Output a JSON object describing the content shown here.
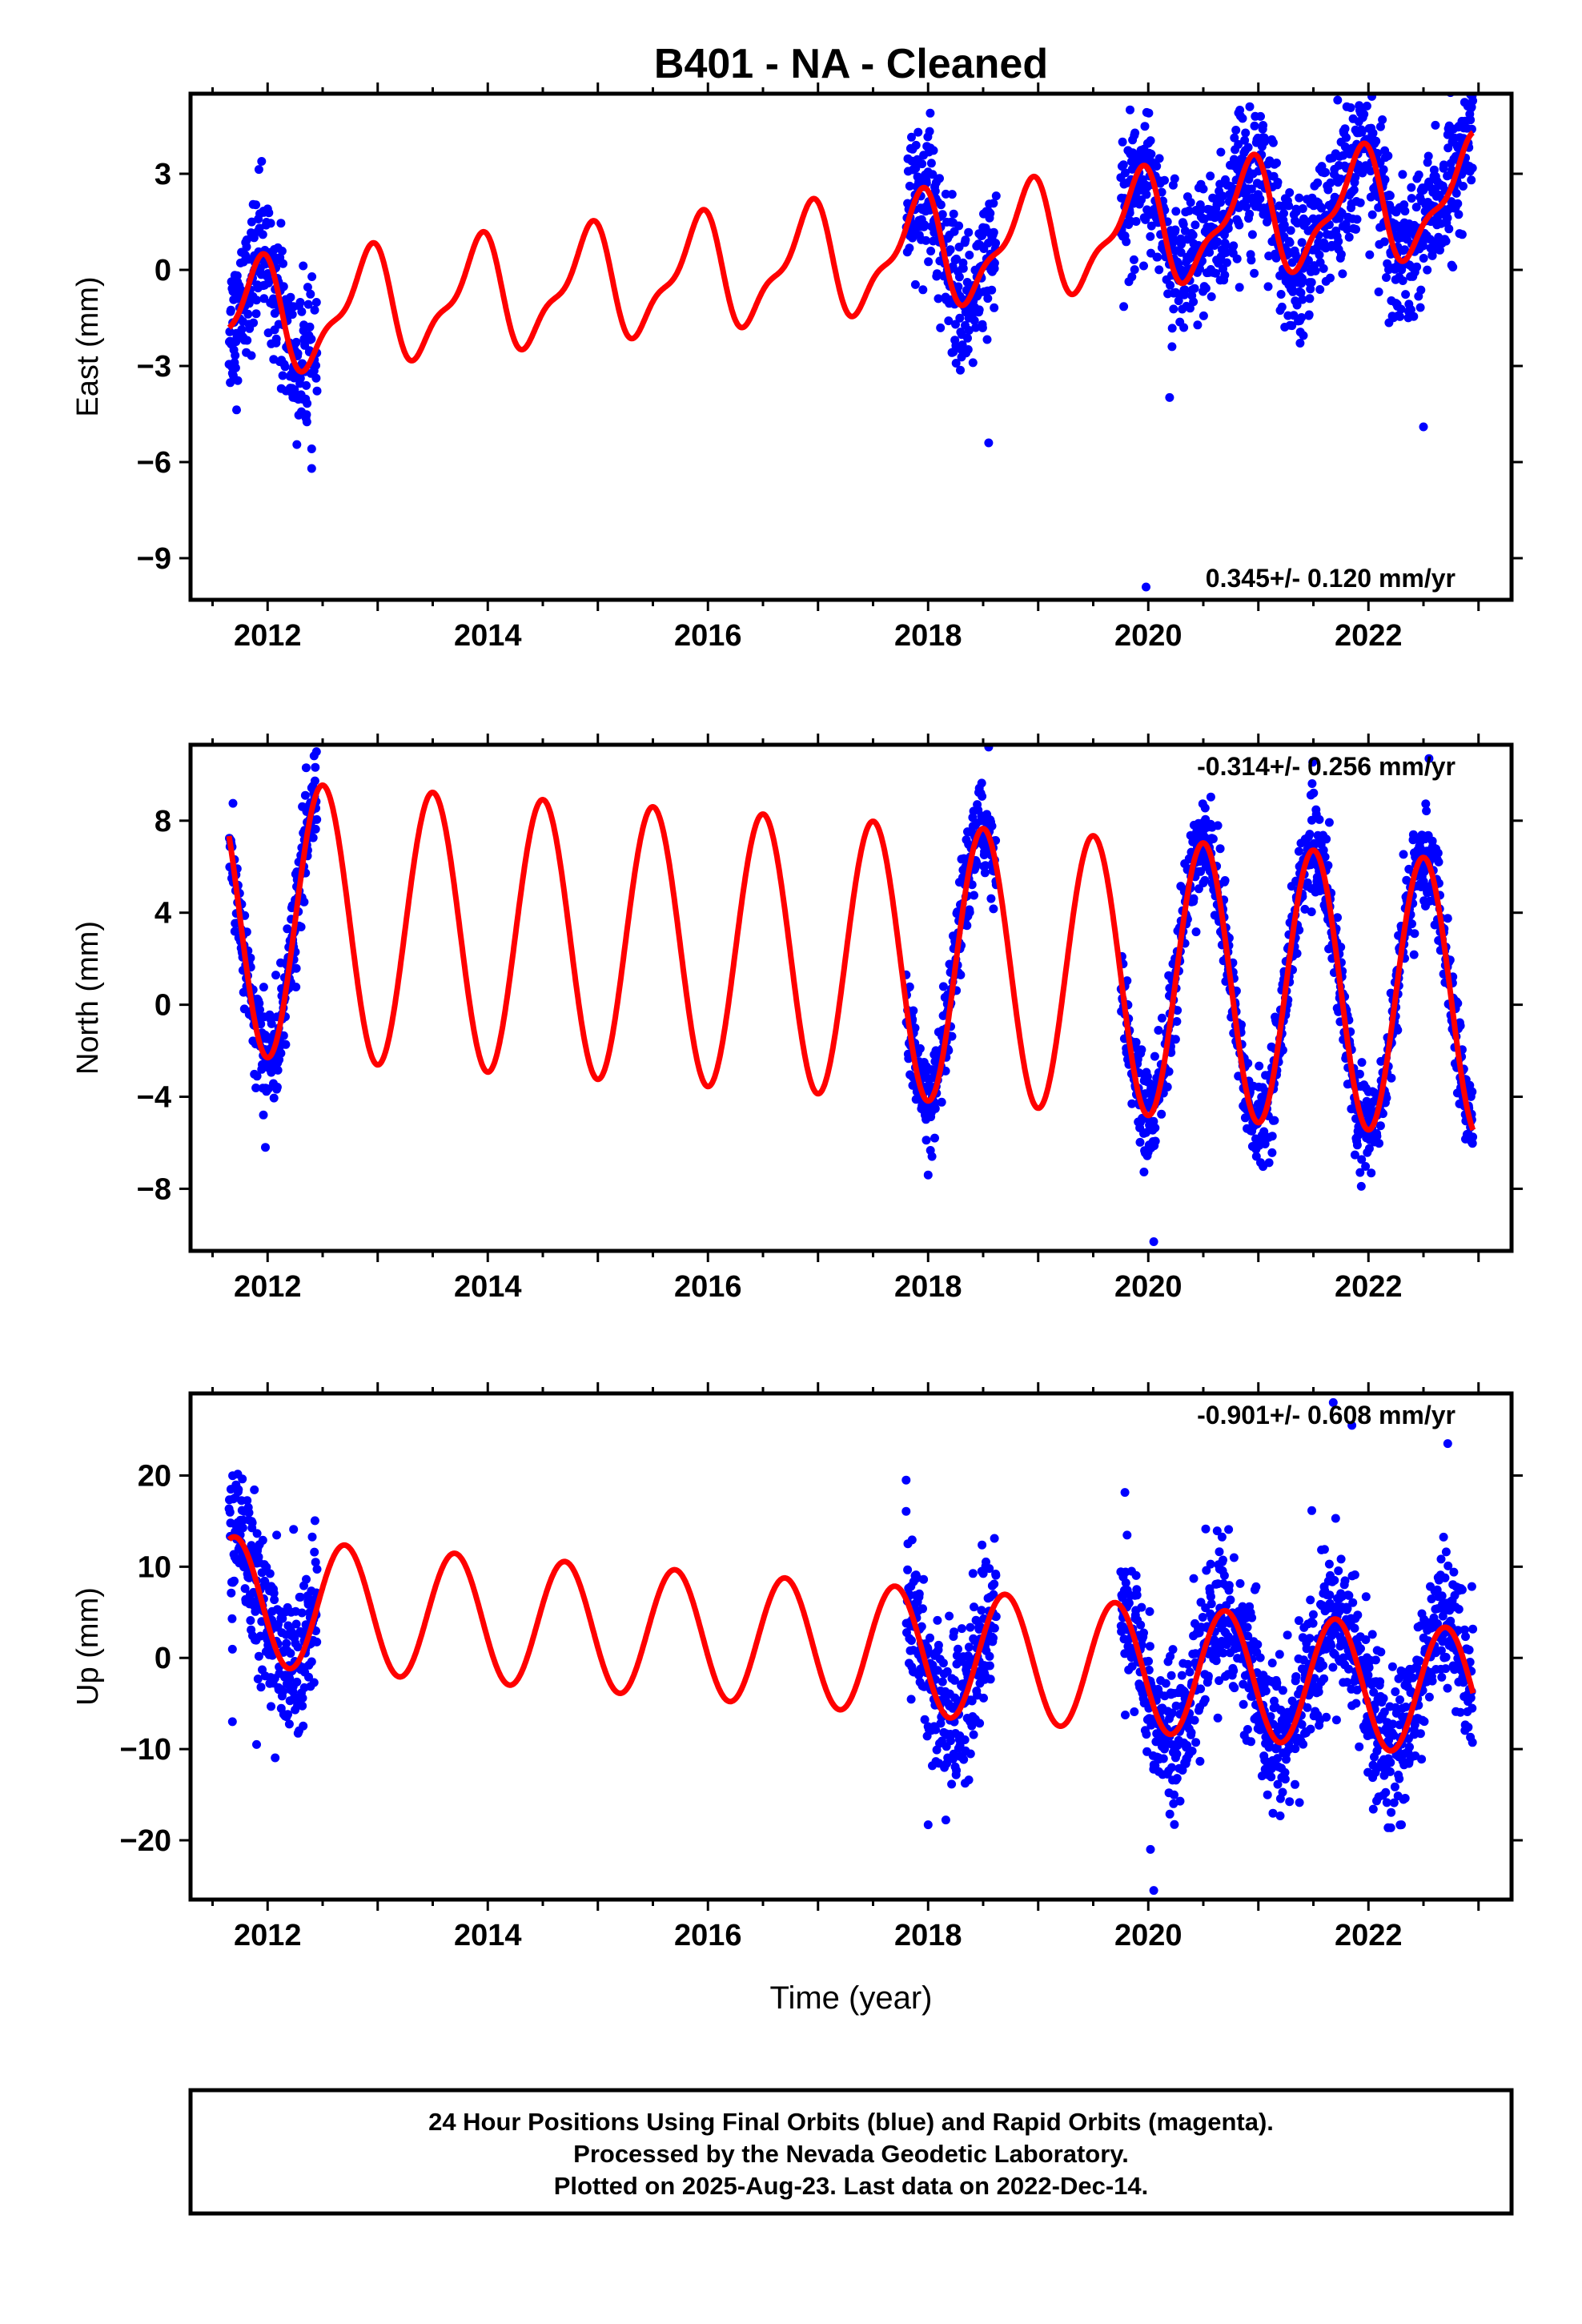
{
  "title": "B401  - NA - Cleaned",
  "footer": {
    "line1": "24 Hour Positions Using Final Orbits (blue) and Rapid Orbits (magenta).",
    "line2": "Processed by the Nevada Geodetic Laboratory.",
    "line3": "Plotted on 2025-Aug-23. Last data on 2022-Dec-14."
  },
  "colors": {
    "data": "#0000ff",
    "fit": "#ff0000"
  },
  "chart_data": [
    {
      "type": "scatter",
      "component": "east",
      "ylabel": "East (mm)",
      "xlim": [
        2011.3,
        2023.3
      ],
      "ylim": [
        -10.3,
        5.5
      ],
      "xticks": [
        2012,
        2014,
        2016,
        2018,
        2020,
        2022
      ],
      "yticks": [
        -9,
        -6,
        -3,
        0,
        3
      ],
      "ytick_labels": [
        "−9",
        "−6",
        "−3",
        "0",
        "3"
      ],
      "rate_label": "0.345+/- 0.120 mm/yr",
      "rate_position": "bottom-right",
      "data_segments": [
        {
          "start": 2011.65,
          "end": 2012.45
        },
        {
          "start": 2017.8,
          "end": 2018.62
        },
        {
          "start": 2019.75,
          "end": 2022.95
        }
      ],
      "fit": {
        "offset": -1.5,
        "rate": 0.345,
        "ref_year": 2012,
        "annual_amp": 1.6,
        "annual_peak": 0.9,
        "semiannual_amp": 0.6,
        "semiannual_peak": 0.0
      },
      "noise_sd": 1.1,
      "outliers": [
        [
          2019.98,
          -9.9
        ],
        [
          2018.55,
          -5.4
        ],
        [
          2012.4,
          -6.2
        ],
        [
          2022.5,
          -4.9
        ],
        [
          2020.82,
          4.9
        ],
        [
          2021.72,
          5.3
        ]
      ]
    },
    {
      "type": "scatter",
      "component": "north",
      "ylabel": "North (mm)",
      "xlim": [
        2011.3,
        2023.3
      ],
      "ylim": [
        -10.7,
        11.3
      ],
      "xticks": [
        2012,
        2014,
        2016,
        2018,
        2020,
        2022
      ],
      "yticks": [
        -8,
        -4,
        0,
        4,
        8
      ],
      "ytick_labels": [
        "−8",
        "−4",
        "0",
        "4",
        "8"
      ],
      "rate_label": "-0.314+/- 0.256 mm/yr",
      "rate_position": "top-right",
      "data_segments": [
        {
          "start": 2011.65,
          "end": 2012.45
        },
        {
          "start": 2017.8,
          "end": 2018.62
        },
        {
          "start": 2019.75,
          "end": 2022.95
        }
      ],
      "fit": {
        "offset": 3.7,
        "rate": -0.314,
        "ref_year": 2012,
        "annual_amp": 6.0,
        "annual_peak": 0.5,
        "semiannual_amp": 0.0,
        "semiannual_peak": 0.0
      },
      "noise_sd": 1.0,
      "outliers": [
        [
          2020.05,
          -10.3
        ],
        [
          2018.55,
          11.2
        ],
        [
          2012.35,
          10.3
        ],
        [
          2022.55,
          10.7
        ],
        [
          2011.98,
          -6.2
        ],
        [
          2018.0,
          -7.4
        ]
      ]
    },
    {
      "type": "scatter",
      "component": "up",
      "ylabel": "Up (mm)",
      "xlim": [
        2011.3,
        2023.3
      ],
      "ylim": [
        -26.5,
        29.0
      ],
      "xticks": [
        2012,
        2014,
        2016,
        2018,
        2020,
        2022
      ],
      "yticks": [
        -20,
        -10,
        0,
        10,
        20
      ],
      "ytick_labels": [
        "−20",
        "−10",
        "0",
        "10",
        "20"
      ],
      "rate_label": "-0.901+/- 0.608 mm/yr",
      "rate_position": "top-right",
      "data_segments": [
        {
          "start": 2011.65,
          "end": 2012.45
        },
        {
          "start": 2017.8,
          "end": 2018.62
        },
        {
          "start": 2019.75,
          "end": 2022.95
        }
      ],
      "fit": {
        "offset": 6.0,
        "rate": -0.901,
        "ref_year": 2012,
        "annual_amp": 7.0,
        "annual_peak": 0.7,
        "semiannual_amp": 0.0,
        "semiannual_peak": 0.0
      },
      "noise_sd": 4.0,
      "outliers": [
        [
          2020.05,
          -25.5
        ],
        [
          2021.68,
          28.0
        ],
        [
          2021.85,
          25.5
        ],
        [
          2022.72,
          23.5
        ],
        [
          2017.8,
          19.5
        ],
        [
          2020.02,
          -21.0
        ],
        [
          2018.0,
          -18.3
        ],
        [
          2022.3,
          -18.3
        ],
        [
          2011.9,
          -9.5
        ],
        [
          2011.68,
          -7.0
        ]
      ]
    }
  ],
  "x_axis_label": "Time (year)"
}
